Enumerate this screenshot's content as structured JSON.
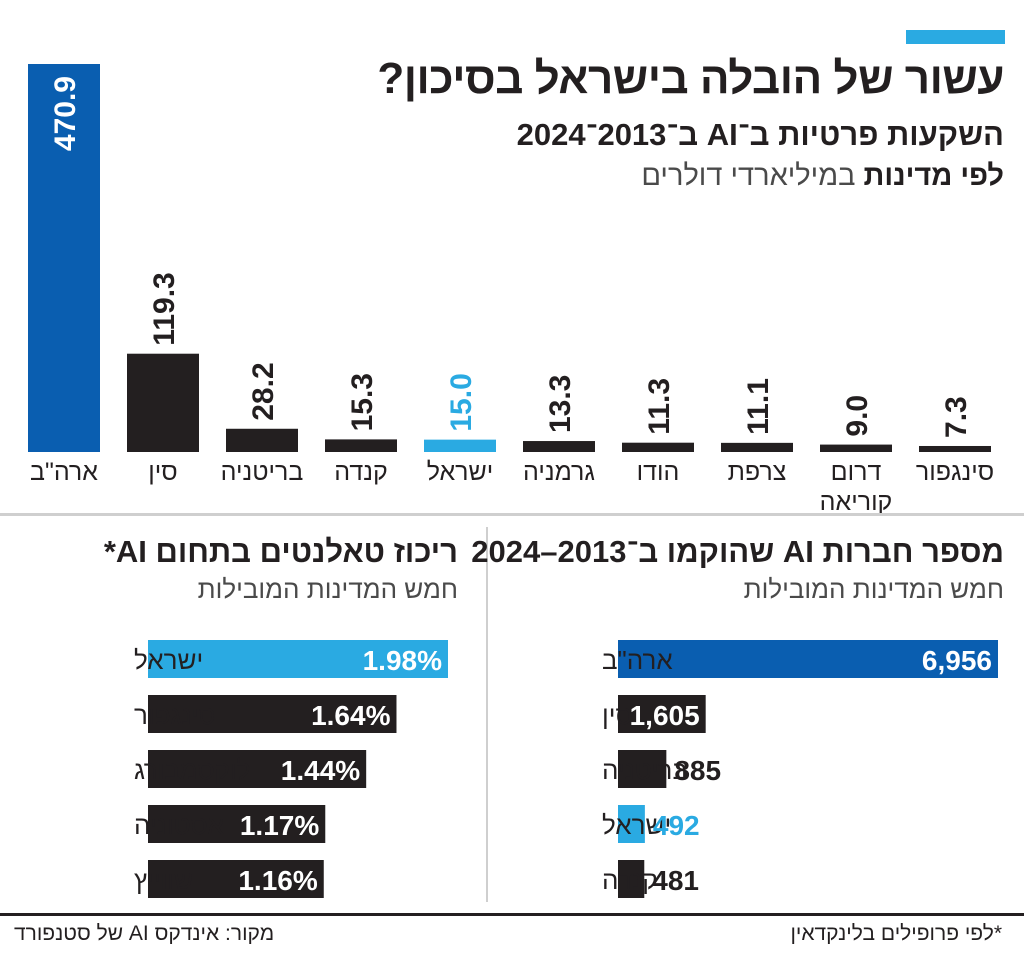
{
  "header": {
    "title": "עשור של הובלה בישראל בסיכון?",
    "subtitle_line1": "השקעות פרטיות ב־AI ב־2013־2024",
    "subtitle_bold": "לפי מדינות",
    "subtitle_light": " במיליארדי דולרים"
  },
  "colors": {
    "usa": "#0a5eb0",
    "israel": "#2aaae2",
    "other": "#231f20",
    "accent": "#2aaae2",
    "divider": "#cfcfcf"
  },
  "chart_data": [
    {
      "type": "bar",
      "title": "השקעות פרטיות ב־AI ב־2013־2024 לפי מדינות",
      "ylabel": "במיליארדי דולרים",
      "ylim": [
        0,
        470.9
      ],
      "categories": [
        "ארה\"ב",
        "סין",
        "בריטניה",
        "קנדה",
        "ישראל",
        "גרמניה",
        "הודו",
        "צרפת",
        "דרום קוריאה",
        "סינגפור"
      ],
      "category_lines": [
        [
          "ארה\"ב"
        ],
        [
          "סין"
        ],
        [
          "בריטניה"
        ],
        [
          "קנדה"
        ],
        [
          "ישראל"
        ],
        [
          "גרמניה"
        ],
        [
          "הודו"
        ],
        [
          "צרפת"
        ],
        [
          "דרום",
          "קוריאה"
        ],
        [
          "סינגפור"
        ]
      ],
      "values": [
        470.9,
        119.3,
        28.2,
        15.3,
        15.0,
        13.3,
        11.3,
        11.1,
        9.0,
        7.3
      ],
      "value_labels": [
        "470.9",
        "119.3",
        "28.2",
        "15.3",
        "15.0",
        "13.3",
        "11.3",
        "11.1",
        "9.0",
        "7.3"
      ],
      "highlight": {
        "ארה\"ב": "usa",
        "ישראל": "israel"
      }
    },
    {
      "type": "bar",
      "orientation": "horizontal",
      "title": "מספר חברות AI שהוקמו ב־2013–2024",
      "subtitle": "חמש המדינות המובילות",
      "categories": [
        "ארה\"ב",
        "סין",
        "בריטניה",
        "ישראל",
        "קנדה"
      ],
      "values": [
        6956,
        1605,
        885,
        492,
        481
      ],
      "value_labels": [
        "6,956",
        "1,605",
        "885",
        "492",
        "481"
      ],
      "xlim": [
        0,
        6956
      ],
      "highlight": {
        "ארה\"ב": "usa",
        "ישראל": "israel"
      }
    },
    {
      "type": "bar",
      "orientation": "horizontal",
      "title": "ריכוז טאלנטים בתחום AI*",
      "subtitle": "חמש המדינות המובילות",
      "categories": [
        "ישראל",
        "סינגפור",
        "לוקסמבורג",
        "אסטוניה",
        "שווייץ"
      ],
      "values": [
        1.98,
        1.64,
        1.44,
        1.17,
        1.16
      ],
      "value_labels": [
        "1.98%",
        "1.64%",
        "1.44%",
        "1.17%",
        "1.16%"
      ],
      "xlim": [
        0,
        1.98
      ],
      "highlight": {
        "ישראל": "israel"
      }
    }
  ],
  "footer": {
    "source": "מקור: אינדקס AI של סטנפורד",
    "note": "*לפי פרופילים בלינקדאין"
  }
}
